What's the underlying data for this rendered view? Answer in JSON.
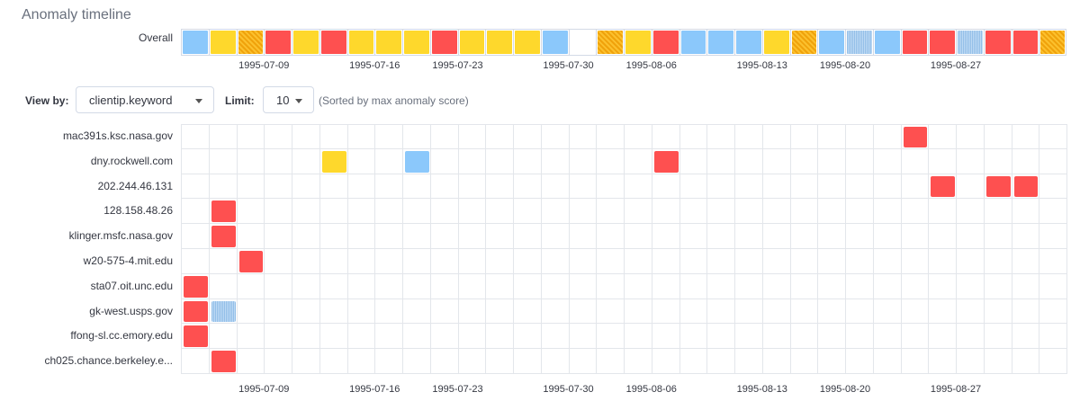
{
  "title": "Anomaly timeline",
  "overall": {
    "label": "Overall",
    "cells": [
      "minor",
      "major",
      "major-hatch",
      "critical",
      "major",
      "critical",
      "major",
      "major",
      "major",
      "critical",
      "major",
      "major",
      "major",
      "minor",
      "none",
      "major-hatch",
      "major",
      "critical",
      "minor",
      "minor",
      "minor",
      "major",
      "major-hatch",
      "minor",
      "warning",
      "minor",
      "critical",
      "critical",
      "warning",
      "critical",
      "critical",
      "major-hatch"
    ]
  },
  "axis_labels": [
    {
      "text": "1995-07-09",
      "col": 3
    },
    {
      "text": "1995-07-16",
      "col": 7
    },
    {
      "text": "1995-07-23",
      "col": 10
    },
    {
      "text": "1995-07-30",
      "col": 14
    },
    {
      "text": "1995-08-06",
      "col": 17
    },
    {
      "text": "1995-08-13",
      "col": 21
    },
    {
      "text": "1995-08-20",
      "col": 24
    },
    {
      "text": "1995-08-27",
      "col": 28
    }
  ],
  "toolbar": {
    "view_by_label": "View by:",
    "view_by_value": "clientip.keyword",
    "limit_label": "Limit:",
    "limit_value": "10",
    "sort_note": "(Sorted by max anomaly score)"
  },
  "swimlane": {
    "columns": 32,
    "rows": [
      {
        "label": "mac391s.ksc.nasa.gov",
        "cells": [
          {
            "col": 26,
            "sev": "critical"
          }
        ]
      },
      {
        "label": "dny.rockwell.com",
        "cells": [
          {
            "col": 5,
            "sev": "major"
          },
          {
            "col": 8,
            "sev": "minor"
          },
          {
            "col": 17,
            "sev": "critical"
          }
        ]
      },
      {
        "label": "202.244.46.131",
        "cells": [
          {
            "col": 27,
            "sev": "critical"
          },
          {
            "col": 29,
            "sev": "critical"
          },
          {
            "col": 30,
            "sev": "critical"
          }
        ]
      },
      {
        "label": "128.158.48.26",
        "cells": [
          {
            "col": 1,
            "sev": "critical"
          }
        ]
      },
      {
        "label": "klinger.msfc.nasa.gov",
        "cells": [
          {
            "col": 1,
            "sev": "critical"
          }
        ]
      },
      {
        "label": "w20-575-4.mit.edu",
        "cells": [
          {
            "col": 2,
            "sev": "critical"
          }
        ]
      },
      {
        "label": "sta07.oit.unc.edu",
        "cells": [
          {
            "col": 0,
            "sev": "critical"
          }
        ]
      },
      {
        "label": "gk-west.usps.gov",
        "cells": [
          {
            "col": 0,
            "sev": "critical"
          },
          {
            "col": 1,
            "sev": "warning"
          }
        ]
      },
      {
        "label": "ffong-sl.cc.emory.edu",
        "cells": [
          {
            "col": 0,
            "sev": "critical"
          }
        ]
      },
      {
        "label": "ch025.chance.berkeley.e...",
        "cells": [
          {
            "col": 1,
            "sev": "critical"
          }
        ]
      }
    ]
  }
}
